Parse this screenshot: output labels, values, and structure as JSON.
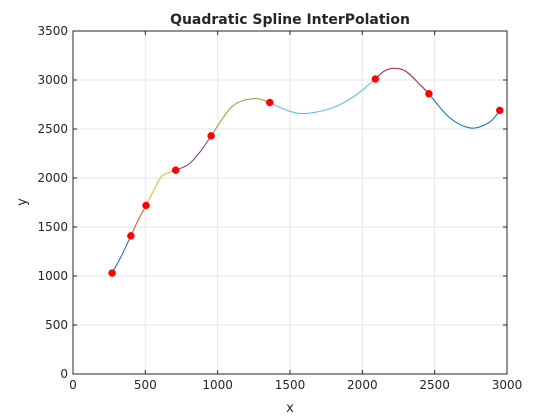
{
  "chart_data": {
    "type": "line",
    "title": "Quadratic Spline InterPolation",
    "xlabel": "x",
    "ylabel": "y",
    "xlim": [
      0,
      3000
    ],
    "ylim": [
      0,
      3500
    ],
    "xticks": [
      0,
      500,
      1000,
      1500,
      2000,
      2500,
      3000
    ],
    "yticks": [
      0,
      500,
      1000,
      1500,
      2000,
      2500,
      3000,
      3500
    ],
    "grid": true,
    "points": {
      "marker_color": "#ff0000",
      "x": [
        270,
        400,
        505,
        710,
        955,
        1360,
        2090,
        2460,
        2950
      ],
      "y": [
        1030,
        1410,
        1720,
        2080,
        2430,
        2770,
        3010,
        2860,
        2690
      ]
    },
    "segments": [
      {
        "color": "#0072bd",
        "x": [
          270,
          335,
          400
        ],
        "y": [
          1030,
          1205,
          1410
        ]
      },
      {
        "color": "#d95319",
        "x": [
          400,
          452,
          505
        ],
        "y": [
          1410,
          1575,
          1720
        ]
      },
      {
        "color": "#edb120",
        "x": [
          505,
          600,
          650,
          710
        ],
        "y": [
          1720,
          1990,
          2050,
          2080
        ]
      },
      {
        "color": "#7e2f8e",
        "x": [
          710,
          800,
          880,
          955
        ],
        "y": [
          2080,
          2140,
          2270,
          2430
        ]
      },
      {
        "color": "#77ac30",
        "x": [
          955,
          1100,
          1250,
          1360
        ],
        "y": [
          2430,
          2730,
          2810,
          2770
        ]
      },
      {
        "color": "#4dbeee",
        "x": [
          1360,
          1500,
          1620,
          1800,
          1950,
          2090
        ],
        "y": [
          2770,
          2680,
          2660,
          2720,
          2840,
          3010
        ]
      },
      {
        "color": "#a2142f",
        "x": [
          2090,
          2150,
          2220,
          2300,
          2400,
          2460
        ],
        "y": [
          3010,
          3090,
          3120,
          3090,
          2950,
          2860
        ]
      },
      {
        "color": "#0072bd",
        "x": [
          2460,
          2600,
          2750,
          2880,
          2950
        ],
        "y": [
          2860,
          2620,
          2510,
          2570,
          2690
        ]
      }
    ]
  }
}
